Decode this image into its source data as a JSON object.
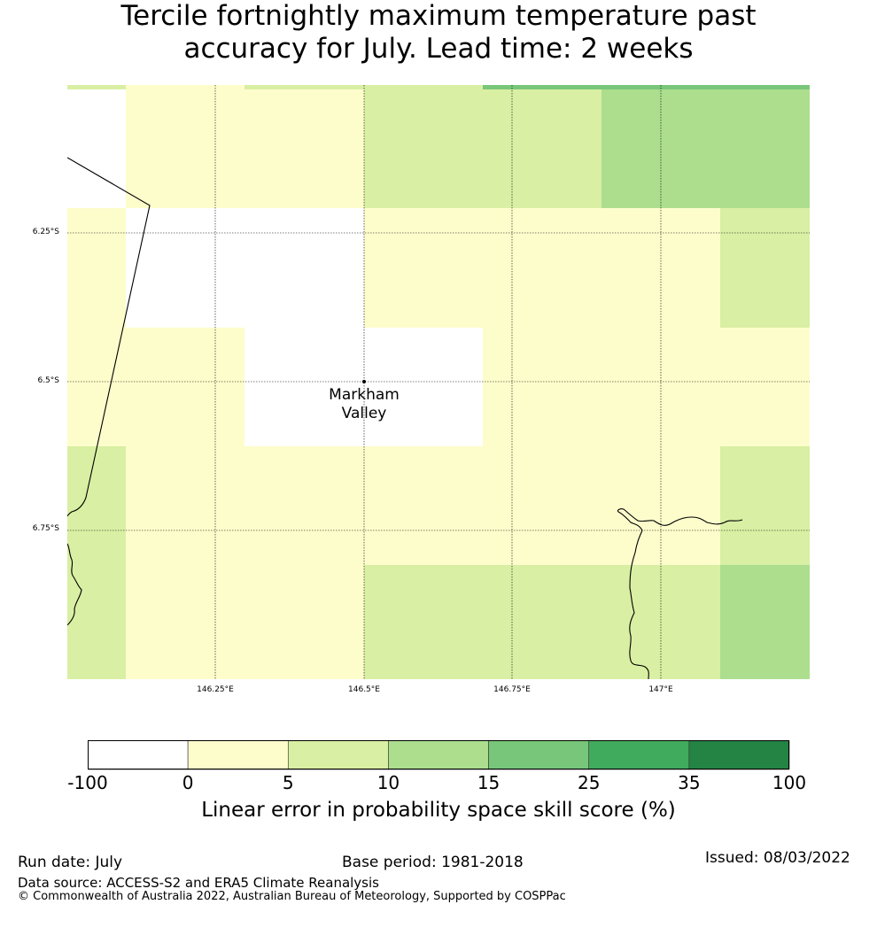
{
  "title_line1": "Tercile fortnightly maximum temperature past",
  "title_line2": "accuracy for July. Lead time: 2 weeks",
  "map": {
    "lat_labels": [
      "6.25°S",
      "6.5°S",
      "6.75°S"
    ],
    "lon_labels": [
      "146.25°E",
      "146.5°E",
      "146.75°E",
      "147°E"
    ],
    "place": {
      "name_line1": "Markham",
      "name_line2": "Valley"
    },
    "grid_rows": [
      [
        "#ffffff",
        "#fdfdcc",
        "#fdfdcc",
        "#d9efa3",
        "#d9efa3",
        "#acde8e",
        "#acde8e"
      ],
      [
        "#fdfdcc",
        "#ffffff",
        "#ffffff",
        "#fdfdcc",
        "#fdfdcc",
        "#fdfdcc",
        "#d9efa3"
      ],
      [
        "#fdfdcc",
        "#fdfdcc",
        "#ffffff",
        "#ffffff",
        "#fdfdcc",
        "#fdfdcc",
        "#fdfdcc"
      ],
      [
        "#d9efa3",
        "#fdfdcc",
        "#fdfdcc",
        "#fdfdcc",
        "#fdfdcc",
        "#fdfdcc",
        "#d9efa3"
      ],
      [
        "#d9efa3",
        "#fdfdcc",
        "#fdfdcc",
        "#d9efa3",
        "#d9efa3",
        "#d9efa3",
        "#acde8e"
      ]
    ],
    "top_strip": [
      "#d9efa3",
      "#fdfdcc",
      "#d9efa3",
      "#d9efa3",
      "#78c679",
      "#78c679",
      "#78c679"
    ]
  },
  "colorbar": {
    "colors": [
      "#ffffff",
      "#fdfdcc",
      "#d9efa3",
      "#acde8e",
      "#78c679",
      "#41ab5d",
      "#238443"
    ],
    "ticks": [
      "-100",
      "0",
      "5",
      "10",
      "15",
      "25",
      "35",
      "100"
    ],
    "label": "Linear error in probability space skill score (%)"
  },
  "footer": {
    "run_date": "Run date: July",
    "base_period": "Base period: 1981-2018",
    "issued": "Issued: 08/03/2022",
    "data_source": "Data source: ACCESS-S2 and ERA5 Climate Reanalysis",
    "copyright": "© Commonwealth of Australia 2022, Australian Bureau of Meteorology, Supported by COSPPac"
  }
}
